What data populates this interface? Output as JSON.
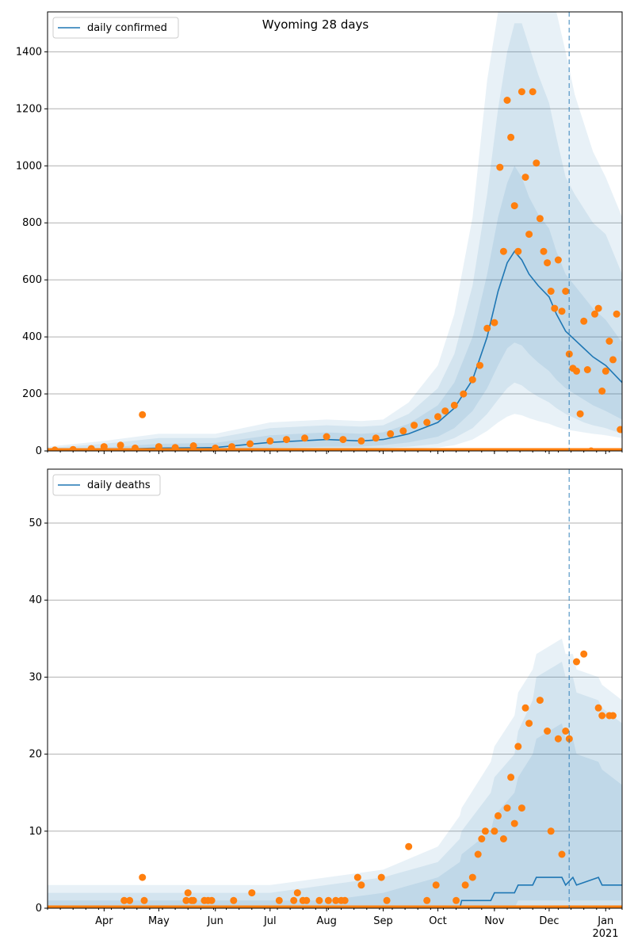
{
  "title": "Wyoming 28 days",
  "colors": {
    "model_line": "#1f77b4",
    "band": "#1f77b4",
    "observed": "#ff7f0e",
    "grid": "#b0b0b0",
    "forecast_marker": "#1f77b4"
  },
  "x_axis": {
    "start": "2020-03-01",
    "end": "2021-01-10",
    "month_ticks": [
      {
        "label": "Apr",
        "date": "2020-04-01"
      },
      {
        "label": "May",
        "date": "2020-05-01"
      },
      {
        "label": "Jun",
        "date": "2020-06-01"
      },
      {
        "label": "Jul",
        "date": "2020-07-01"
      },
      {
        "label": "Aug",
        "date": "2020-08-01"
      },
      {
        "label": "Sep",
        "date": "2020-09-01"
      },
      {
        "label": "Oct",
        "date": "2020-10-01"
      },
      {
        "label": "Nov",
        "date": "2020-11-01"
      },
      {
        "label": "Dec",
        "date": "2020-12-01"
      },
      {
        "label": "Jan",
        "date": "2021-01-01"
      }
    ],
    "year_label": "2021",
    "forecast_start": "2020-12-12"
  },
  "chart_data": [
    {
      "type": "line",
      "legend": "daily confirmed",
      "legend_position": "top-left",
      "grid": true,
      "ylim": [
        0,
        1540
      ],
      "yticks": [
        0,
        200,
        400,
        600,
        800,
        1000,
        1200,
        1400
      ],
      "model": {
        "x": [
          "2020-03-01",
          "2020-04-01",
          "2020-05-01",
          "2020-06-01",
          "2020-07-01",
          "2020-08-01",
          "2020-08-20",
          "2020-09-01",
          "2020-09-15",
          "2020-10-01",
          "2020-10-10",
          "2020-10-20",
          "2020-10-28",
          "2020-11-03",
          "2020-11-08",
          "2020-11-12",
          "2020-11-16",
          "2020-11-20",
          "2020-11-25",
          "2020-12-01",
          "2020-12-05",
          "2020-12-10",
          "2020-12-15",
          "2020-12-20",
          "2020-12-25",
          "2021-01-01",
          "2021-01-10"
        ],
        "values": [
          2,
          5,
          10,
          12,
          30,
          40,
          35,
          40,
          60,
          100,
          150,
          250,
          400,
          560,
          660,
          700,
          670,
          620,
          580,
          540,
          480,
          420,
          390,
          360,
          330,
          300,
          240
        ]
      },
      "bands": [
        {
          "lower": [
            0,
            0,
            0,
            0,
            10,
            15,
            15,
            20,
            30,
            50,
            80,
            140,
            220,
            300,
            360,
            380,
            370,
            340,
            310,
            280,
            250,
            220,
            200,
            180,
            160,
            140,
            110
          ],
          "upper": [
            5,
            12,
            25,
            28,
            55,
            65,
            60,
            65,
            95,
            160,
            240,
            400,
            620,
            820,
            940,
            1000,
            960,
            890,
            830,
            780,
            700,
            620,
            580,
            540,
            500,
            460,
            380
          ]
        },
        {
          "lower": [
            0,
            0,
            0,
            0,
            5,
            8,
            8,
            10,
            15,
            25,
            45,
            80,
            130,
            180,
            220,
            240,
            230,
            210,
            190,
            170,
            150,
            130,
            115,
            100,
            90,
            80,
            60
          ],
          "upper": [
            10,
            25,
            45,
            45,
            80,
            90,
            85,
            90,
            130,
            220,
            340,
            580,
            900,
            1200,
            1400,
            1500,
            1500,
            1420,
            1320,
            1220,
            1100,
            960,
            900,
            850,
            800,
            760,
            620
          ]
        },
        {
          "lower": [
            0,
            0,
            0,
            0,
            0,
            2,
            2,
            4,
            8,
            12,
            20,
            40,
            70,
            100,
            120,
            130,
            125,
            115,
            105,
            95,
            85,
            75,
            70,
            65,
            60,
            55,
            45
          ],
          "upper": [
            15,
            35,
            60,
            60,
            100,
            110,
            105,
            110,
            170,
            300,
            480,
            820,
            1300,
            1540,
            1540,
            1540,
            1540,
            1540,
            1540,
            1540,
            1540,
            1400,
            1250,
            1150,
            1050,
            960,
            820
          ]
        }
      ],
      "observed": {
        "x": [
          "2020-03-05",
          "2020-03-15",
          "2020-03-25",
          "2020-04-01",
          "2020-04-10",
          "2020-04-18",
          "2020-04-22",
          "2020-05-01",
          "2020-05-10",
          "2020-05-20",
          "2020-06-01",
          "2020-06-10",
          "2020-06-20",
          "2020-07-01",
          "2020-07-10",
          "2020-07-20",
          "2020-08-01",
          "2020-08-10",
          "2020-08-20",
          "2020-08-28",
          "2020-09-05",
          "2020-09-12",
          "2020-09-18",
          "2020-09-25",
          "2020-10-01",
          "2020-10-05",
          "2020-10-10",
          "2020-10-15",
          "2020-10-20",
          "2020-10-24",
          "2020-10-28",
          "2020-11-01",
          "2020-11-04",
          "2020-11-06",
          "2020-11-08",
          "2020-11-10",
          "2020-11-12",
          "2020-11-14",
          "2020-11-16",
          "2020-11-18",
          "2020-11-20",
          "2020-11-22",
          "2020-11-24",
          "2020-11-26",
          "2020-11-28",
          "2020-11-30",
          "2020-12-02",
          "2020-12-04",
          "2020-12-06",
          "2020-12-08",
          "2020-12-10",
          "2020-12-12",
          "2020-12-14",
          "2020-12-16",
          "2020-12-18",
          "2020-12-20",
          "2020-12-22",
          "2020-12-24",
          "2020-12-26",
          "2020-12-28",
          "2020-12-30",
          "2021-01-01",
          "2021-01-03",
          "2021-01-05",
          "2021-01-07",
          "2021-01-09"
        ],
        "values": [
          3,
          5,
          8,
          15,
          20,
          10,
          127,
          15,
          12,
          18,
          10,
          15,
          25,
          35,
          40,
          45,
          50,
          40,
          35,
          45,
          60,
          70,
          90,
          100,
          120,
          140,
          160,
          200,
          250,
          300,
          430,
          450,
          995,
          700,
          1230,
          1100,
          860,
          700,
          1260,
          960,
          760,
          1260,
          1010,
          815,
          700,
          660,
          560,
          500,
          670,
          490,
          560,
          340,
          290,
          280,
          130,
          455,
          285,
          0,
          480,
          500,
          210,
          280,
          385,
          320,
          480,
          75
        ]
      }
    },
    {
      "type": "line",
      "legend": "daily deaths",
      "legend_position": "top-left",
      "grid": true,
      "ylim": [
        0,
        57
      ],
      "yticks": [
        0,
        10,
        20,
        30,
        40,
        50
      ],
      "model": {
        "x": [
          "2020-03-01",
          "2020-04-01",
          "2020-05-01",
          "2020-06-01",
          "2020-07-01",
          "2020-08-01",
          "2020-09-01",
          "2020-10-01",
          "2020-10-13",
          "2020-10-14",
          "2020-10-30",
          "2020-11-01",
          "2020-11-12",
          "2020-11-14",
          "2020-11-22",
          "2020-11-24",
          "2020-12-08",
          "2020-12-10",
          "2020-12-14",
          "2020-12-16",
          "2020-12-28",
          "2020-12-30",
          "2021-01-10"
        ],
        "values": [
          0,
          0,
          0,
          0,
          0,
          0,
          0,
          0,
          0,
          1,
          1,
          2,
          2,
          3,
          3,
          4,
          4,
          3,
          4,
          3,
          4,
          3,
          3
        ]
      },
      "bands": [
        {
          "lower": [
            0,
            0,
            0,
            0,
            0,
            0,
            0,
            0,
            0,
            0,
            0,
            0,
            0,
            1,
            1,
            1,
            1,
            1,
            1,
            1,
            1,
            1,
            1
          ],
          "upper": [
            1,
            1,
            1,
            1,
            1,
            1,
            2,
            4,
            6,
            7,
            10,
            12,
            15,
            17,
            20,
            22,
            24,
            22,
            22,
            20,
            19,
            18,
            16
          ]
        },
        {
          "lower": [
            0,
            0,
            0,
            0,
            0,
            0,
            0,
            0,
            0,
            0,
            0,
            0,
            0,
            0,
            0,
            0,
            0,
            0,
            0,
            0,
            0,
            0,
            0
          ],
          "upper": [
            2,
            2,
            2,
            2,
            2,
            3,
            4,
            6,
            9,
            10,
            15,
            17,
            20,
            23,
            27,
            30,
            32,
            30,
            30,
            28,
            27,
            26,
            24
          ]
        },
        {
          "lower": [
            0,
            0,
            0,
            0,
            0,
            0,
            0,
            0,
            0,
            0,
            0,
            0,
            0,
            0,
            0,
            0,
            0,
            0,
            0,
            0,
            0,
            0,
            0
          ],
          "upper": [
            3,
            3,
            3,
            3,
            3,
            4,
            5,
            8,
            12,
            13,
            19,
            21,
            25,
            28,
            31,
            33,
            35,
            33,
            33,
            31,
            30,
            29,
            27
          ]
        }
      ],
      "observed": {
        "x": [
          "2020-04-12",
          "2020-04-15",
          "2020-04-22",
          "2020-04-23",
          "2020-05-16",
          "2020-05-17",
          "2020-05-19",
          "2020-05-20",
          "2020-05-26",
          "2020-05-28",
          "2020-05-30",
          "2020-06-11",
          "2020-06-21",
          "2020-07-06",
          "2020-07-14",
          "2020-07-16",
          "2020-07-19",
          "2020-07-21",
          "2020-07-28",
          "2020-08-02",
          "2020-08-06",
          "2020-08-09",
          "2020-08-11",
          "2020-08-18",
          "2020-08-20",
          "2020-08-31",
          "2020-09-03",
          "2020-09-15",
          "2020-09-25",
          "2020-09-30",
          "2020-10-11",
          "2020-10-16",
          "2020-10-20",
          "2020-10-23",
          "2020-10-25",
          "2020-10-27",
          "2020-11-01",
          "2020-11-03",
          "2020-11-06",
          "2020-11-08",
          "2020-11-10",
          "2020-11-12",
          "2020-11-14",
          "2020-11-16",
          "2020-11-18",
          "2020-11-20",
          "2020-11-26",
          "2020-11-30",
          "2020-12-02",
          "2020-12-06",
          "2020-12-08",
          "2020-12-10",
          "2020-12-12",
          "2020-12-16",
          "2020-12-20",
          "2020-12-28",
          "2020-12-30",
          "2021-01-03",
          "2021-01-05"
        ],
        "values": [
          1,
          1,
          4,
          1,
          1,
          2,
          1,
          1,
          1,
          1,
          1,
          1,
          2,
          1,
          1,
          2,
          1,
          1,
          1,
          1,
          1,
          1,
          1,
          4,
          3,
          4,
          1,
          8,
          1,
          3,
          1,
          3,
          4,
          7,
          9,
          10,
          10,
          12,
          9,
          13,
          17,
          11,
          21,
          13,
          26,
          24,
          27,
          23,
          10,
          22,
          7,
          23,
          22,
          32,
          33,
          26,
          25,
          25,
          25
        ]
      }
    }
  ]
}
